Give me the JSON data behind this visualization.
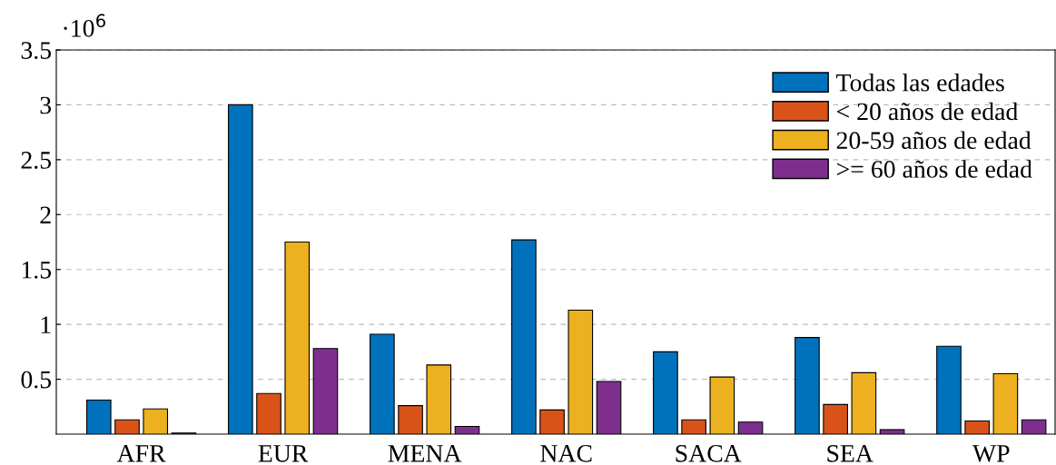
{
  "chart_data": {
    "type": "bar",
    "categories": [
      "AFR",
      "EUR",
      "MENA",
      "NAC",
      "SACA",
      "SEA",
      "WP"
    ],
    "series": [
      {
        "name": "Todas las edades",
        "color": "#0072bd",
        "values": [
          0.31,
          3.0,
          0.91,
          1.77,
          0.75,
          0.88,
          0.8
        ]
      },
      {
        "name": "< 20 años de edad",
        "color": "#d95319",
        "values": [
          0.13,
          0.37,
          0.26,
          0.22,
          0.13,
          0.27,
          0.12
        ]
      },
      {
        "name": "20-59 años de edad",
        "color": "#edb120",
        "values": [
          0.23,
          1.75,
          0.63,
          1.13,
          0.52,
          0.56,
          0.55
        ]
      },
      {
        "name": ">= 60 años de edad",
        "color": "#7e2f8e",
        "values": [
          0.01,
          0.78,
          0.07,
          0.48,
          0.11,
          0.04,
          0.13
        ]
      }
    ],
    "ylim": [
      0,
      3.5
    ],
    "yticks": [
      0.5,
      1,
      1.5,
      2,
      2.5,
      3,
      3.5
    ],
    "grid": "y",
    "legend": "top right",
    "annotations": [
      "·10$^{6}$"
    ]
  }
}
